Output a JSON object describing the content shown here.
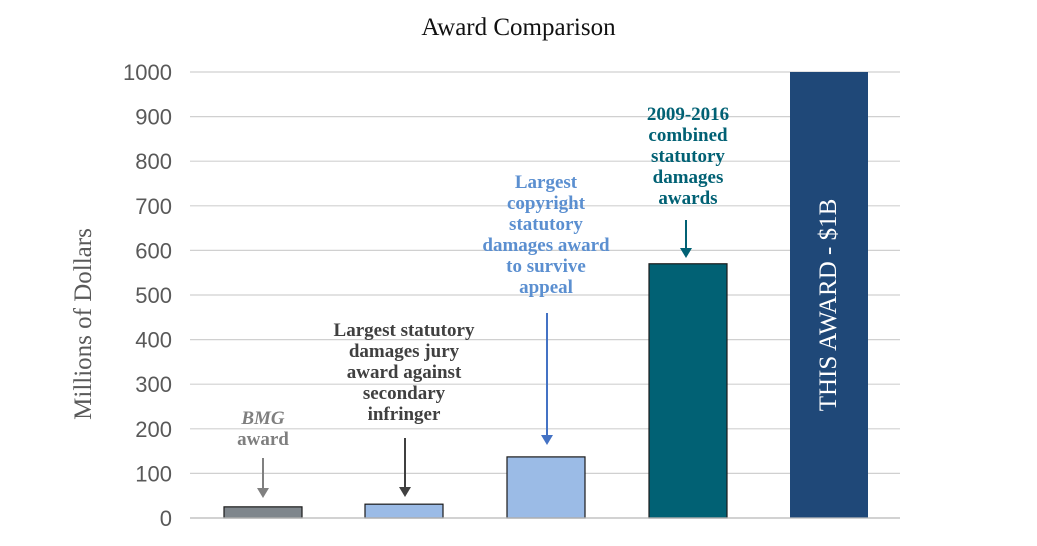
{
  "chart_data": {
    "type": "bar",
    "title": "Award Comparison",
    "ylabel": "Millions of Dollars",
    "xlabel": "",
    "ylim": [
      0,
      1000
    ],
    "yticks": [
      0,
      100,
      200,
      300,
      400,
      500,
      600,
      700,
      800,
      900,
      1000
    ],
    "grid": true,
    "categories": [
      "BMG award",
      "Largest statutory damages jury award against secondary infringer",
      "Largest copyright statutory damages award to survive appeal",
      "2009-2016 combined statutory damages awards",
      "THIS AWARD - $1B"
    ],
    "values": [
      25,
      31,
      137,
      570,
      1000
    ],
    "colors": [
      "#7f868c",
      "#9bbbe6",
      "#9bbbe6",
      "#016174",
      "#1f4878"
    ],
    "bar_label": "THIS AWARD - $1B",
    "annotations": [
      {
        "lines": [
          "BMG",
          "award"
        ],
        "italic_first": true,
        "color": "#7f7f7f"
      },
      {
        "lines": [
          "Largest statutory",
          "damages jury",
          "award against",
          "secondary",
          "infringer"
        ],
        "color": "#404040"
      },
      {
        "lines": [
          "Largest",
          "copyright",
          "statutory",
          "damages award",
          "to survive",
          "appeal"
        ],
        "color": "#5b8fd0"
      },
      {
        "lines": [
          "2009-2016",
          "combined",
          "statutory",
          "damages",
          "awards"
        ],
        "color": "#016174"
      }
    ]
  }
}
